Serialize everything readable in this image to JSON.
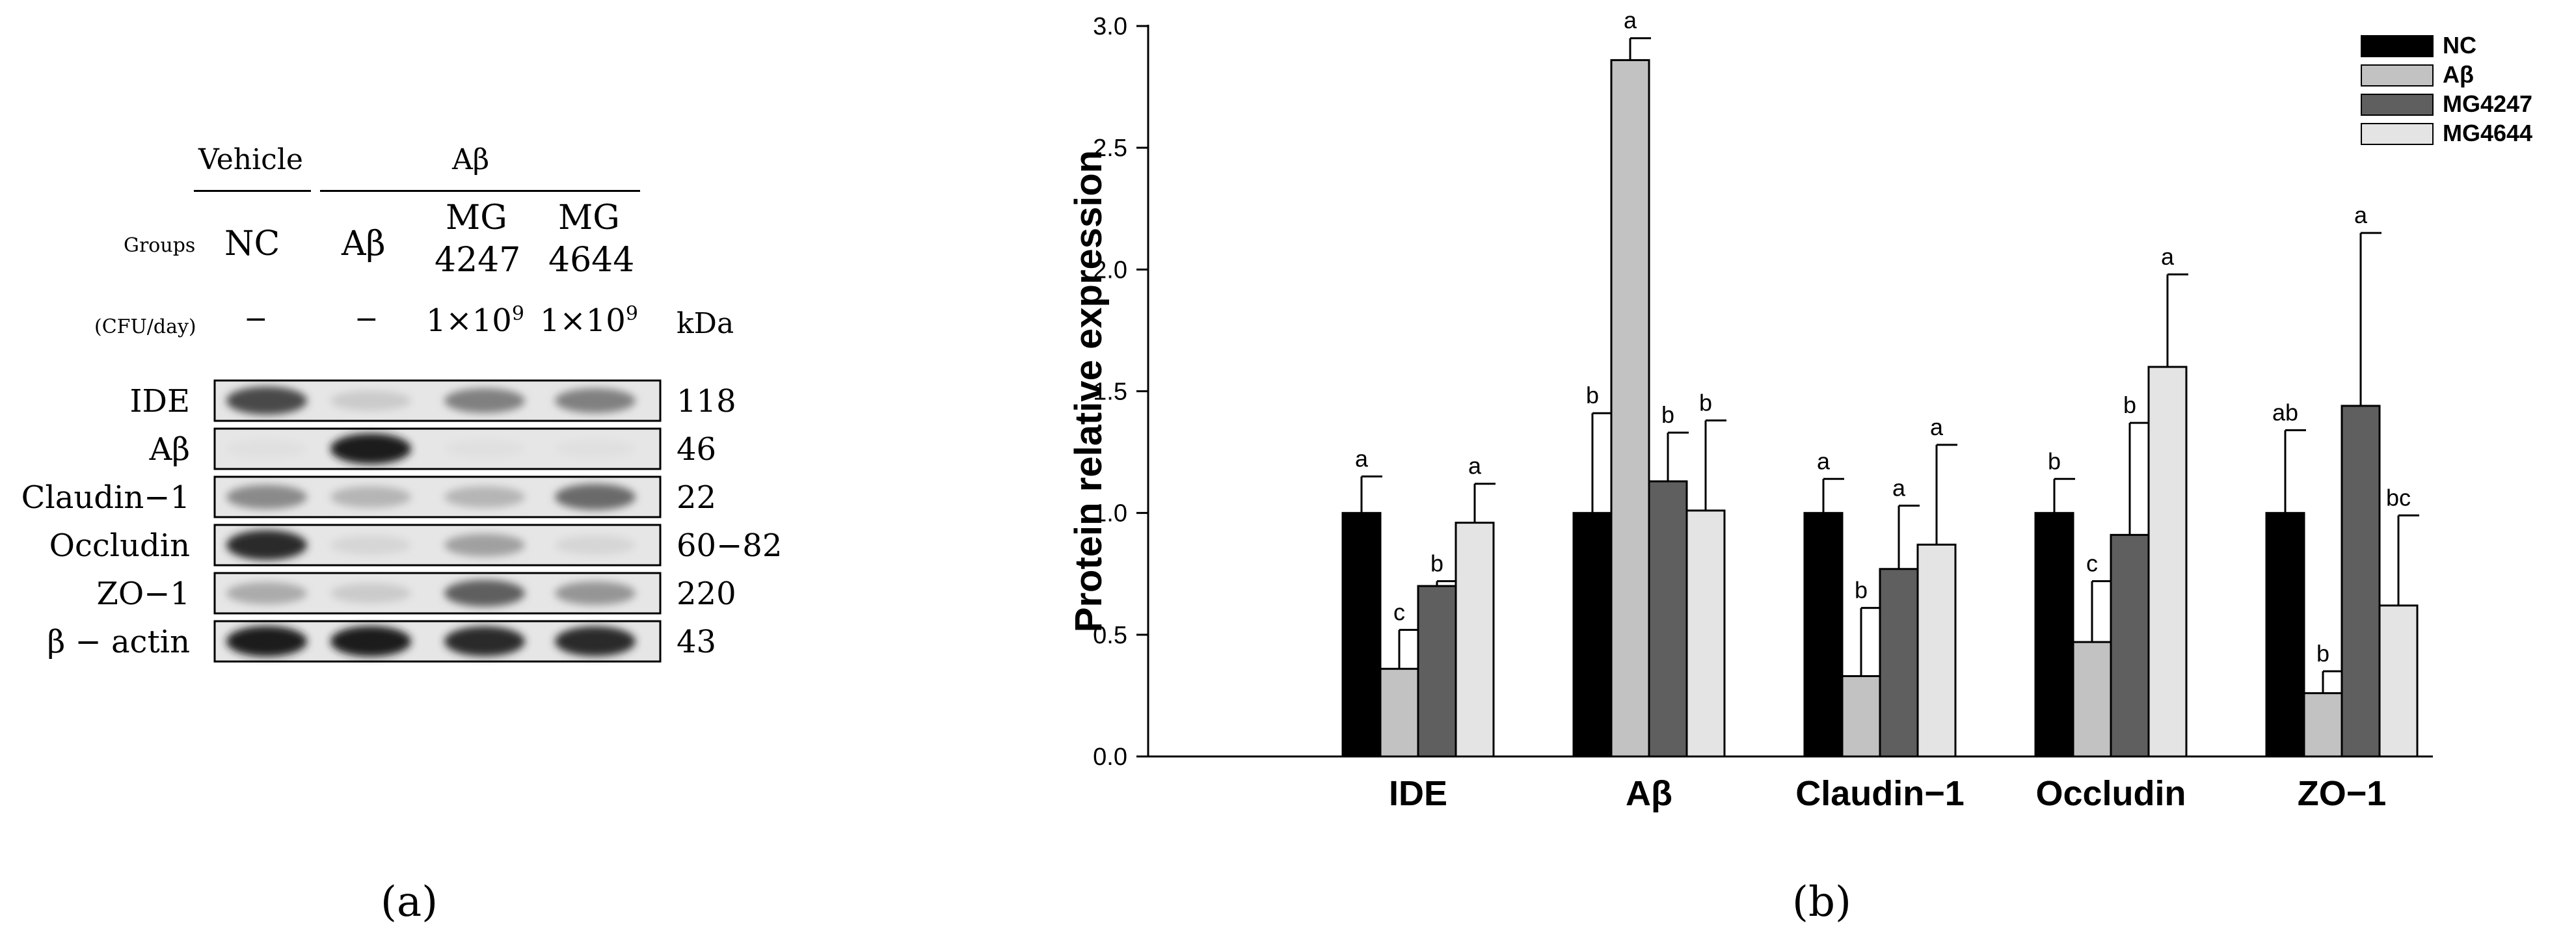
{
  "western_blot": {
    "header_vehicle": "Vehicle",
    "header_abeta": "Aβ",
    "groups_label": "Groups",
    "cfu_label": "(CFU/day)",
    "kda_label": "kDa",
    "lanes": [
      {
        "name": "NC",
        "line2": "",
        "dose": "−",
        "dose_exp": ""
      },
      {
        "name": "Aβ",
        "line2": "",
        "dose": "−",
        "dose_exp": ""
      },
      {
        "name": "MG",
        "line2": "4247",
        "dose": "1×10",
        "dose_exp": "9"
      },
      {
        "name": "MG",
        "line2": "4644",
        "dose": "1×10",
        "dose_exp": "9"
      }
    ],
    "rows": [
      {
        "label": "IDE",
        "kda": "118",
        "intensity": [
          0.75,
          0.15,
          0.5,
          0.5
        ]
      },
      {
        "label": "Aβ",
        "kda": "46",
        "intensity": [
          0.05,
          0.95,
          0.05,
          0.05
        ]
      },
      {
        "label": "Claudin−1",
        "kda": "22",
        "intensity": [
          0.45,
          0.25,
          0.25,
          0.6
        ]
      },
      {
        "label": "Occludin",
        "kda": "60−82",
        "intensity": [
          0.9,
          0.1,
          0.35,
          0.1
        ]
      },
      {
        "label": "ZO−1",
        "kda": "220",
        "intensity": [
          0.3,
          0.15,
          0.65,
          0.4
        ]
      },
      {
        "label": "β − actin",
        "kda": "43",
        "intensity": [
          0.95,
          0.95,
          0.9,
          0.9
        ]
      }
    ],
    "caption": "(a)"
  },
  "chart_data": {
    "type": "bar",
    "title": "",
    "xlabel": "",
    "ylabel": "Protein relative expression",
    "ylim": [
      0,
      3.0
    ],
    "yticks": [
      "0.0",
      "0.5",
      "1.0",
      "1.5",
      "2.0",
      "2.5",
      "3.0"
    ],
    "categories": [
      "IDE",
      "Aβ",
      "Claudin−1",
      "Occludin",
      "ZO−1"
    ],
    "series": [
      {
        "name": "NC",
        "color": "#000000",
        "values": [
          1.0,
          1.0,
          1.0,
          1.0,
          1.0
        ],
        "errors": [
          0.15,
          0.41,
          0.14,
          0.14,
          0.34
        ],
        "letters": [
          "a",
          "b",
          "a",
          "b",
          "ab"
        ]
      },
      {
        "name": "Aβ",
        "color": "#c2c2c2",
        "values": [
          0.36,
          2.86,
          0.33,
          0.47,
          0.26
        ],
        "errors": [
          0.16,
          0.09,
          0.28,
          0.25,
          0.09
        ],
        "letters": [
          "c",
          "a",
          "b",
          "c",
          "b"
        ]
      },
      {
        "name": "MG4247",
        "color": "#5f5f5f",
        "values": [
          0.7,
          1.13,
          0.77,
          0.91,
          1.44
        ],
        "errors": [
          0.02,
          0.2,
          0.26,
          0.46,
          0.71
        ],
        "letters": [
          "b",
          "b",
          "a",
          "b",
          "a"
        ]
      },
      {
        "name": "MG4644",
        "color": "#e4e4e4",
        "values": [
          0.96,
          1.01,
          0.87,
          1.6,
          0.62
        ],
        "errors": [
          0.16,
          0.37,
          0.41,
          0.38,
          0.37
        ],
        "letters": [
          "a",
          "b",
          "a",
          "a",
          "bc"
        ]
      }
    ],
    "legend": "top-right",
    "caption": "(b)"
  }
}
